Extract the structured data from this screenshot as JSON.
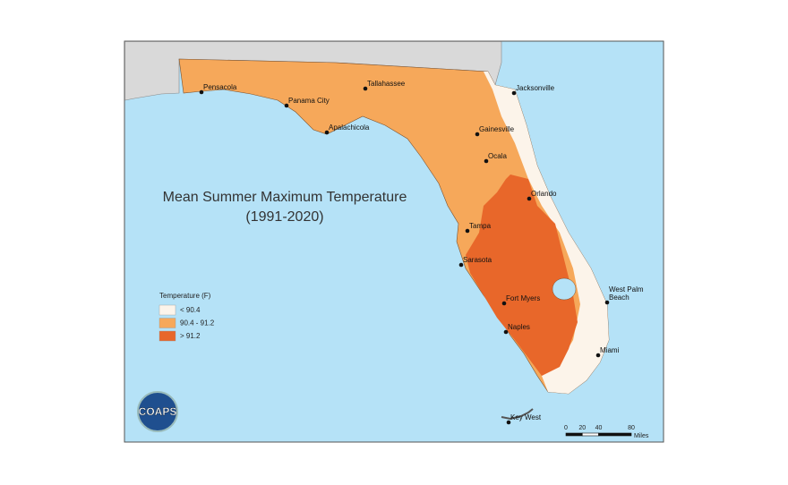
{
  "map": {
    "title": "Mean Summer Maximum Temperature",
    "subtitle": "(1991-2020)",
    "legend": {
      "title": "Temperature (F)",
      "entries": [
        {
          "label": "< 90.4",
          "color": "#fcf4ea"
        },
        {
          "label": "90.4 - 91.2",
          "color": "#f6a85a"
        },
        {
          "label": "> 91.2",
          "color": "#e8672a"
        }
      ]
    },
    "cities": [
      "Pensacola",
      "Panama City",
      "Apalachicola",
      "Tallahassee",
      "Jacksonville",
      "Gainesville",
      "Ocala",
      "Orlando",
      "Tampa",
      "Sarasota",
      "Fort Myers",
      "Naples",
      "West Palm Beach",
      "Miami",
      "Key West"
    ],
    "scale": {
      "ticks": [
        0,
        20,
        40,
        80
      ],
      "unit": "Miles"
    },
    "logo": "COAPS"
  }
}
